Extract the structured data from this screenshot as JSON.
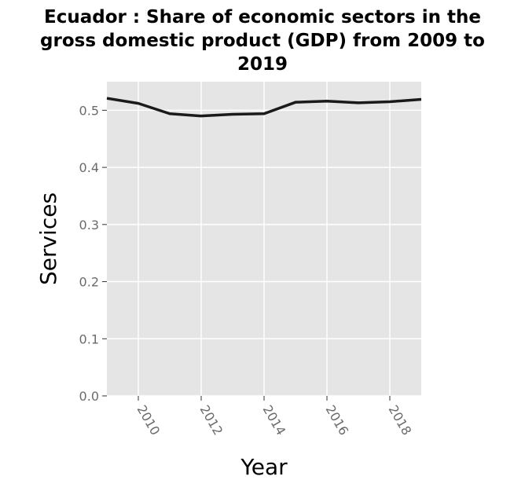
{
  "chart_data": {
    "type": "line",
    "title_lines": [
      "Ecuador : Share of economic sectors in the",
      "gross domestic product (GDP) from 2009 to",
      "2019"
    ],
    "xlabel": "Year",
    "ylabel": "Services",
    "x": [
      2009,
      2010,
      2011,
      2012,
      2013,
      2014,
      2015,
      2016,
      2017,
      2018,
      2019
    ],
    "series": [
      {
        "values": [
          0.521,
          0.512,
          0.494,
          0.49,
          0.493,
          0.494,
          0.514,
          0.516,
          0.513,
          0.515,
          0.519
        ]
      }
    ],
    "xlim": [
      2009,
      2019
    ],
    "ylim": [
      0,
      0.55
    ],
    "xticks": [
      2010,
      2012,
      2014,
      2016,
      2018
    ],
    "xtick_labels": [
      "2010",
      "2012",
      "2014",
      "2016",
      "2018"
    ],
    "yticks": [
      0,
      0.1,
      0.2,
      0.3,
      0.4,
      0.5
    ],
    "ytick_labels": [
      "0.0",
      "0.1",
      "0.2",
      "0.3",
      "0.4",
      "0.5"
    ],
    "grid": true,
    "legend": "none",
    "colors": {
      "panel_background": "#e5e5e5",
      "grid": "#ffffff",
      "line": "#1a1a1a",
      "tick_label": "#6b6b6b"
    }
  }
}
